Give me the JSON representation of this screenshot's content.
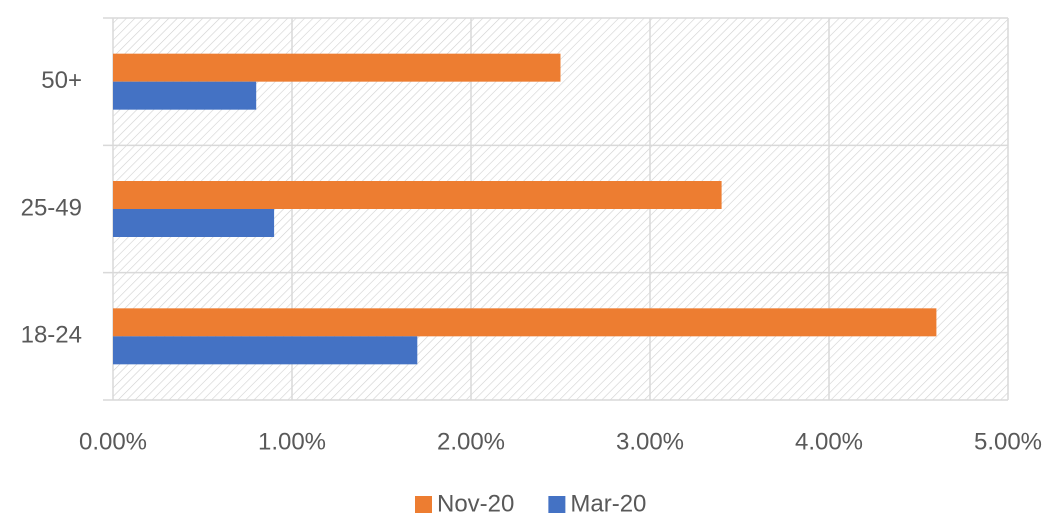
{
  "chart_data": {
    "type": "hbar",
    "categories": [
      "18-24",
      "25-49",
      "50+"
    ],
    "series": [
      {
        "name": "Nov-20",
        "color": "#ed7d31",
        "values": [
          4.6,
          3.4,
          2.5
        ]
      },
      {
        "name": "Mar-20",
        "color": "#4472c4",
        "values": [
          1.7,
          0.9,
          0.8
        ]
      }
    ],
    "xlim": [
      0,
      5
    ],
    "xticks": [
      {
        "value": 0,
        "label": "0.00%"
      },
      {
        "value": 1,
        "label": "1.00%"
      },
      {
        "value": 2,
        "label": "2.00%"
      },
      {
        "value": 3,
        "label": "3.00%"
      },
      {
        "value": 4,
        "label": "4.00%"
      },
      {
        "value": 5,
        "label": "5.00%"
      }
    ],
    "grid": true,
    "legend": "bottom"
  }
}
